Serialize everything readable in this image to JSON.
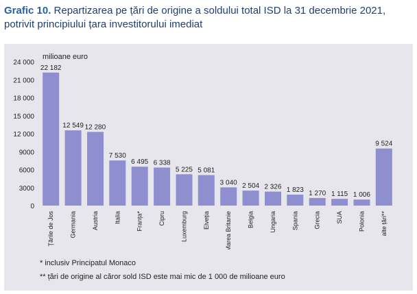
{
  "title": {
    "lead": "Grafic 10.",
    "line1": " Repartizarea pe țări de origine a soldului total ISD la 31 decembrie 2021,",
    "line2": "potrivit principiului țara investitorului imediat"
  },
  "notes": {
    "note1": "* inclusiv Principatul Monaco",
    "note2": "** țări de origine al căror sold ISD este mai mic de 1 000 de milioane euro"
  },
  "colors": {
    "bar": "#8f8fcf",
    "panel": "#e6e6ec",
    "title": "#2a5fa6"
  },
  "chart_data": {
    "type": "bar",
    "ylabel": "milioane euro",
    "ylim": [
      0,
      24000
    ],
    "yticks": [
      0,
      3000,
      6000,
      9000,
      12000,
      15000,
      18000,
      21000,
      24000
    ],
    "ytick_labels": [
      "0",
      "3000",
      "6000",
      "9000",
      "12 000",
      "15 000",
      "18 000",
      "21 000",
      "24 000"
    ],
    "grid": false,
    "categories": [
      "Țările de Jos",
      "Germania",
      "Austria",
      "Italia",
      "Franța*",
      "Cipru",
      "Luxemburg",
      "Elveția",
      "Marea Britanie",
      "Belgia",
      "Ungaria",
      "Spania",
      "Grecia",
      "SUA",
      "Polonia",
      "alte țări**"
    ],
    "values": [
      22182,
      12549,
      12280,
      7530,
      6495,
      6338,
      5225,
      5081,
      3040,
      2504,
      2326,
      1823,
      1270,
      1115,
      1006,
      9524
    ],
    "value_labels": [
      "22 182",
      "12 549",
      "12 280",
      "7 530",
      "6 495",
      "6 338",
      "5 225",
      "5 081",
      "3 040",
      "2 504",
      "2 326",
      "1 823",
      "1 270",
      "1 115",
      "1 006",
      "9 524"
    ]
  }
}
